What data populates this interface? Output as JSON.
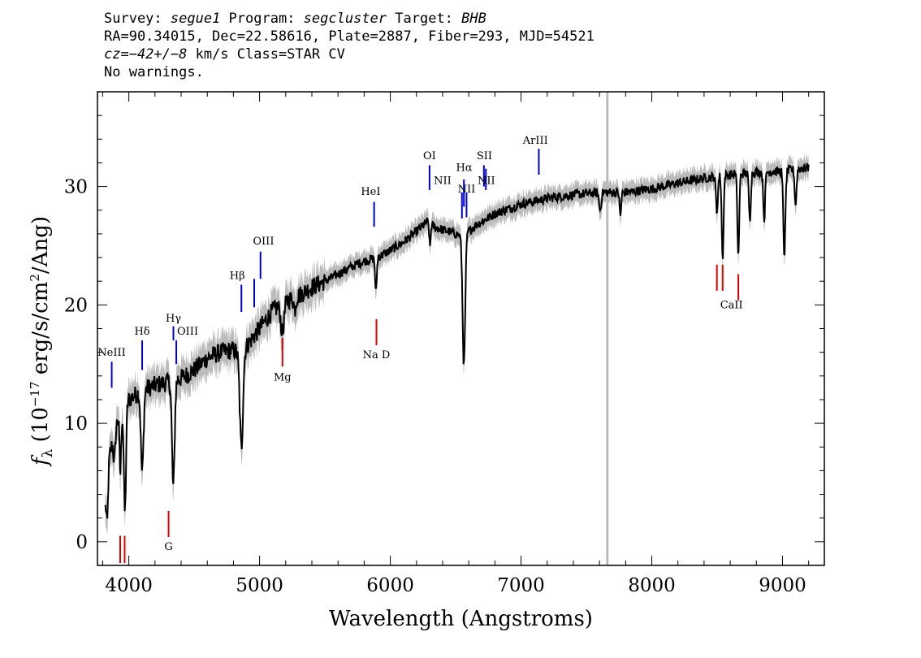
{
  "header": {
    "line1": {
      "survey_label": "Survey: ",
      "survey": "segue1",
      "program_label": " Program: ",
      "program": "segcluster",
      "target_label": " Target: ",
      "target": "BHB"
    },
    "line2": "RA=90.34015, Dec=22.58616, Plate=2887, Fiber=293, MJD=54521",
    "line3": {
      "cz": "cz=−42+/−8",
      "rest": " km/s Class=STAR CV"
    },
    "line4": "No warnings."
  },
  "chart_data": {
    "type": "line",
    "xlabel": "Wavelength (Angstroms)",
    "ylabel_parts": [
      "f",
      "λ",
      " (10",
      "−17",
      " erg/s/cm",
      "2",
      "/Ang)"
    ],
    "xlim": [
      3760,
      9320
    ],
    "ylim": [
      -2,
      38
    ],
    "x_ticks": [
      4000,
      5000,
      6000,
      7000,
      8000,
      9000
    ],
    "y_ticks": [
      0,
      10,
      20,
      30
    ],
    "x_minor_step": 200,
    "y_minor_step": 2,
    "grid": false,
    "colors": {
      "flux": "#000000",
      "noise": "#bbbbbb",
      "vline": "#bbbbbb",
      "emission": "#0000cc",
      "absorption": "#dd0000"
    },
    "vertical_line_x": 7660,
    "continuum": [
      [
        3820,
        3
      ],
      [
        3850,
        7
      ],
      [
        3900,
        10
      ],
      [
        4000,
        12
      ],
      [
        4100,
        12.8
      ],
      [
        4200,
        13.2
      ],
      [
        4300,
        13.5
      ],
      [
        4400,
        13.8
      ],
      [
        4500,
        14.5
      ],
      [
        4600,
        15.5
      ],
      [
        4700,
        16
      ],
      [
        4800,
        16.2
      ],
      [
        4850,
        15.8
      ],
      [
        4900,
        16.5
      ],
      [
        5000,
        18
      ],
      [
        5100,
        19.5
      ],
      [
        5200,
        20.3
      ],
      [
        5300,
        20.8
      ],
      [
        5400,
        21.5
      ],
      [
        5500,
        22
      ],
      [
        5600,
        22.6
      ],
      [
        5700,
        23.2
      ],
      [
        5800,
        23.7
      ],
      [
        5900,
        24
      ],
      [
        6000,
        24.6
      ],
      [
        6100,
        25.3
      ],
      [
        6200,
        26.2
      ],
      [
        6280,
        27
      ],
      [
        6350,
        26.5
      ],
      [
        6450,
        26.2
      ],
      [
        6550,
        25.8
      ],
      [
        6650,
        26.7
      ],
      [
        6800,
        27.7
      ],
      [
        7000,
        28.5
      ],
      [
        7200,
        29
      ],
      [
        7400,
        29.3
      ],
      [
        7600,
        29.5
      ],
      [
        7800,
        29.5
      ],
      [
        8000,
        29.8
      ],
      [
        8200,
        30.3
      ],
      [
        8400,
        30.7
      ],
      [
        8600,
        31
      ],
      [
        8800,
        31.2
      ],
      [
        9000,
        31.3
      ],
      [
        9200,
        31.6
      ]
    ],
    "absorption_dips": [
      [
        3835,
        3.5,
        6
      ],
      [
        3890,
        2.5,
        8
      ],
      [
        3935,
        5,
        6
      ],
      [
        3970,
        9,
        8
      ],
      [
        4102,
        7,
        10
      ],
      [
        4340,
        9,
        10
      ],
      [
        4861,
        8,
        12
      ],
      [
        5175,
        2.5,
        12
      ],
      [
        5270,
        1,
        8
      ],
      [
        5890,
        3,
        6
      ],
      [
        6303,
        2,
        5
      ],
      [
        6563,
        11,
        10
      ],
      [
        7605,
        1.5,
        8
      ],
      [
        7760,
        2,
        6
      ],
      [
        8498,
        3,
        7
      ],
      [
        8542,
        7,
        7
      ],
      [
        8662,
        7,
        7
      ],
      [
        8750,
        4,
        7
      ],
      [
        8860,
        4,
        7
      ],
      [
        9014,
        7,
        8
      ],
      [
        9100,
        3,
        7
      ]
    ],
    "noise_amp": 1.1,
    "emission_lines": [
      {
        "label": "NeIII",
        "x": 3869,
        "y1": 13,
        "y2": 15.2,
        "tx": 3869,
        "ty": 15.7
      },
      {
        "label": "Hδ",
        "x": 4102,
        "y1": 14.5,
        "y2": 17,
        "tx": 4102,
        "ty": 17.5
      },
      {
        "label": "Hγ",
        "x": 4341,
        "y1": 17,
        "y2": 18.2,
        "tx": 4341,
        "ty": 18.6
      },
      {
        "label": "OIII",
        "x": 4363,
        "y1": 15,
        "y2": 17,
        "tx": 4450,
        "ty": 17.5
      },
      {
        "label": "Hβ",
        "x": 4861,
        "y1": 19.4,
        "y2": 21.7,
        "tx": 4830,
        "ty": 22.2
      },
      {
        "label": "",
        "x": 4959,
        "y1": 19.8,
        "y2": 22.2,
        "tx": 4959,
        "ty": 22.2
      },
      {
        "label": "OIII",
        "x": 5007,
        "y1": 22.2,
        "y2": 24.5,
        "tx": 5030,
        "ty": 25.1
      },
      {
        "label": "HeI",
        "x": 5876,
        "y1": 26.6,
        "y2": 28.7,
        "tx": 5850,
        "ty": 29.3
      },
      {
        "label": "OI",
        "x": 6300,
        "y1": 29.7,
        "y2": 31.8,
        "tx": 6300,
        "ty": 32.3
      },
      {
        "label": "NII",
        "x": 6548,
        "y1": 27.3,
        "y2": 29.5,
        "tx": 6400,
        "ty": 30.2
      },
      {
        "label": "Hα",
        "x": 6563,
        "y1": 28.3,
        "y2": 30.6,
        "tx": 6565,
        "ty": 31.3
      },
      {
        "label": "NII",
        "x": 6583,
        "y1": 27.4,
        "y2": 29.5,
        "tx": 6583,
        "ty": 29.5
      },
      {
        "label": "SII",
        "x": 6716,
        "y1": 30,
        "y2": 31.8,
        "tx": 6720,
        "ty": 32.3
      },
      {
        "label": "NII",
        "x": 6731,
        "y1": 29.7,
        "y2": 31.5,
        "tx": 6735,
        "ty": 30.2
      },
      {
        "label": "ArIII",
        "x": 7136,
        "y1": 31,
        "y2": 33.2,
        "tx": 7110,
        "ty": 33.6
      }
    ],
    "absorption_lines": [
      {
        "label": "",
        "x": 3934,
        "y1": -1.8,
        "y2": 0.5,
        "tx": 3934,
        "ty": 0
      },
      {
        "label": "",
        "x": 3968,
        "y1": -1.8,
        "y2": 0.5,
        "tx": 3968,
        "ty": 0
      },
      {
        "label": "G",
        "x": 4304,
        "y1": 0.4,
        "y2": 2.6,
        "tx": 4304,
        "ty": -0.7
      },
      {
        "label": "Mg",
        "x": 5175,
        "y1": 14.8,
        "y2": 17.2,
        "tx": 5175,
        "ty": 13.6
      },
      {
        "label": "Na D",
        "x": 5894,
        "y1": 16.6,
        "y2": 18.8,
        "tx": 5894,
        "ty": 15.5
      },
      {
        "label": "CaII",
        "x": 8498,
        "y1": 21.2,
        "y2": 23.4,
        "tx": 8610,
        "ty": 19.7
      },
      {
        "label": "",
        "x": 8542,
        "y1": 21.2,
        "y2": 23.4,
        "tx": 8542,
        "ty": 23.4
      },
      {
        "label": "",
        "x": 8662,
        "y1": 20.4,
        "y2": 22.6,
        "tx": 8662,
        "ty": 22.6
      }
    ]
  }
}
